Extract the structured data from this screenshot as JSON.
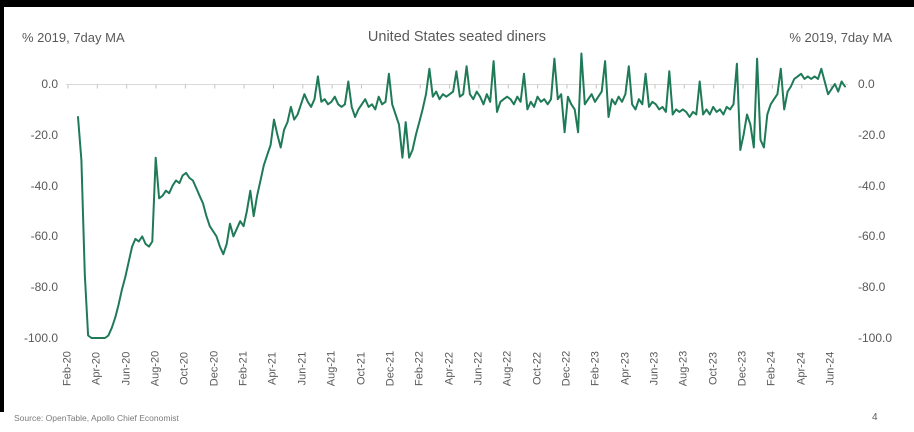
{
  "window": {
    "title": "United States seated diners"
  },
  "header": {
    "left_axis_caption": "% 2019, 7day MA",
    "right_axis_caption": "% 2019, 7day MA",
    "title": "United States seated diners"
  },
  "footer": {
    "source": "Source: OpenTable, Apollo Chief Economist",
    "page_number": "4"
  },
  "style": {
    "line_color": "#1f7a58",
    "axis_color": "#d9d9d9",
    "tick_color": "#c4c4c4",
    "text_color": "#595959",
    "frame_color": "#000000",
    "background": "#ffffff"
  },
  "chart_data": {
    "type": "line",
    "title": "United States seated diners",
    "ylabel": "% 2019, 7day MA",
    "xlabel": "",
    "grid": "single horizontal axis line at 0 with month tick marks",
    "legend": "none",
    "ylim": [
      -100,
      15
    ],
    "y_tick_labels": [
      "0.0",
      "-20.0",
      "-40.0",
      "-60.0",
      "-80.0",
      "-100.0"
    ],
    "y_tick_values": [
      0,
      -20,
      -40,
      -60,
      -80,
      -100
    ],
    "x_tick_labels": [
      "Feb-20",
      "Apr-20",
      "Jun-20",
      "Aug-20",
      "Oct-20",
      "Dec-20",
      "Feb-21",
      "Apr-21",
      "Jun-21",
      "Aug-21",
      "Oct-21",
      "Dec-21",
      "Feb-22",
      "Apr-22",
      "Jun-22",
      "Aug-22",
      "Oct-22",
      "Dec-22",
      "Feb-23",
      "Apr-23",
      "Jun-23",
      "Aug-23",
      "Oct-23",
      "Dec-23",
      "Feb-24",
      "Apr-24",
      "Jun-24"
    ],
    "series": [
      {
        "name": "United States seated diners, % vs 2019, 7-day moving average",
        "sampling": "weekly, 2020-02-22 through 2024-06-29",
        "color": "#1f7a58",
        "values": [
          -13,
          -30,
          -75,
          -99,
          -100,
          -100,
          -100,
          -100,
          -100,
          -99,
          -96,
          -92,
          -87,
          -81,
          -76,
          -70,
          -64,
          -61,
          -62,
          -60,
          -63,
          -64,
          -62,
          -29,
          -45,
          -44,
          -42,
          -43,
          -40,
          -38,
          -39,
          -36,
          -35,
          -37,
          -38,
          -41,
          -44,
          -47,
          -52,
          -56,
          -58,
          -60,
          -64,
          -67,
          -63,
          -55,
          -60,
          -57,
          -54,
          -56,
          -50,
          -42,
          -52,
          -44,
          -38,
          -32,
          -28,
          -24,
          -14,
          -20,
          -25,
          -18,
          -15,
          -9,
          -14,
          -12,
          -8,
          -4,
          -7,
          -9,
          -6,
          3,
          -7,
          -6,
          -8,
          -7,
          -5,
          -8,
          -9,
          -8,
          1,
          -9,
          -13,
          -10,
          -8,
          -6,
          -9,
          -8,
          -10,
          -5,
          -8,
          -7,
          4,
          -8,
          -12,
          -16,
          -29,
          -15,
          -29,
          -26,
          -20,
          -15,
          -10,
          -4,
          6,
          -5,
          -3,
          -6,
          -4,
          -5,
          -4,
          -3,
          5,
          -5,
          -4,
          7,
          -4,
          -6,
          -3,
          -5,
          -8,
          -4,
          -7,
          9,
          -11,
          -7,
          -6,
          -5,
          -6,
          -8,
          -5,
          -7,
          4,
          -10,
          -7,
          -9,
          -5,
          -7,
          -6,
          -8,
          -6,
          10,
          -6,
          -4,
          -19,
          -5,
          -8,
          -10,
          -19,
          12,
          -8,
          -6,
          -4,
          -7,
          -5,
          -3,
          9,
          -13,
          -6,
          -8,
          -5,
          -7,
          -4,
          7,
          -8,
          -10,
          -6,
          -8,
          4,
          -9,
          -7,
          -8,
          -10,
          -9,
          -11,
          5,
          -12,
          -10,
          -11,
          -10,
          -11,
          -13,
          -11,
          -12,
          1,
          -12,
          -10,
          -12,
          -9,
          -11,
          -10,
          -12,
          -9,
          -10,
          -8,
          8,
          -26,
          -20,
          -12,
          -16,
          -25,
          10,
          -22,
          -25,
          -12,
          -8,
          -6,
          -4,
          6,
          -10,
          -3,
          -1,
          2,
          3,
          4,
          2,
          3,
          2,
          3,
          2,
          6,
          1,
          -4,
          -2,
          0,
          -3,
          1,
          -1
        ]
      }
    ]
  }
}
